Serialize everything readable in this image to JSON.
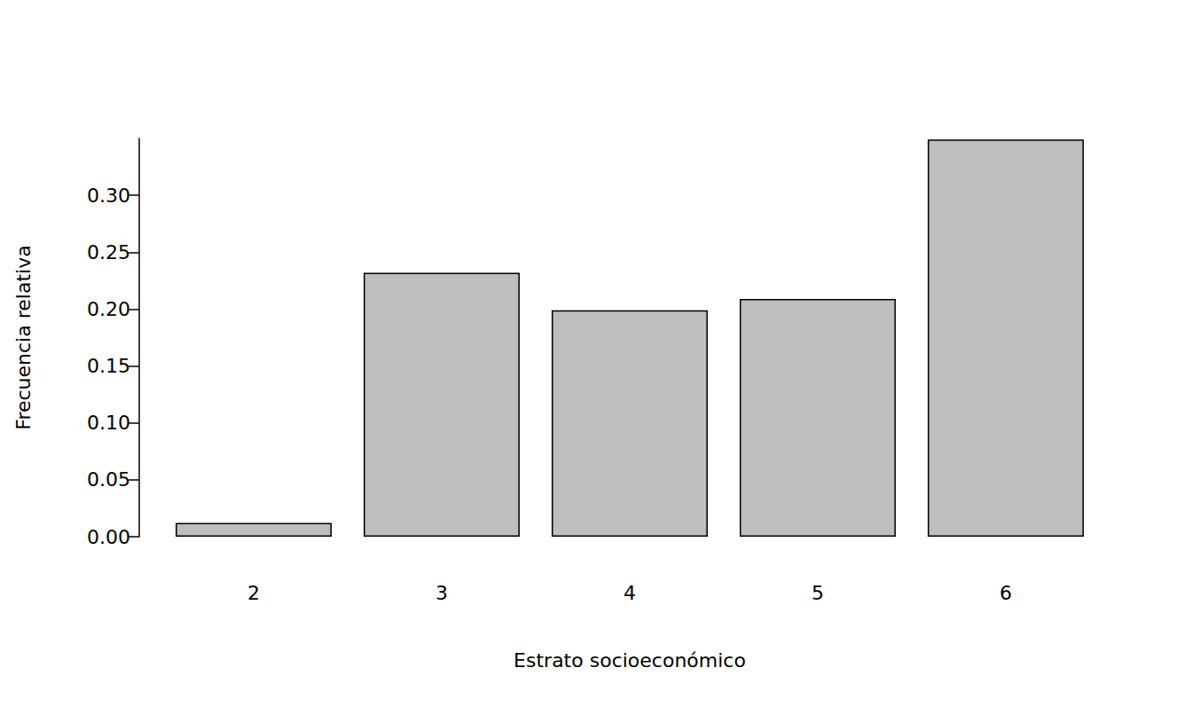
{
  "chart_data": {
    "type": "bar",
    "x_label": "Estrato socioeconómico",
    "y_label": "Frecuencia relativa",
    "categories": [
      "2",
      "3",
      "4",
      "5",
      "6"
    ],
    "values": [
      0.012,
      0.232,
      0.199,
      0.209,
      0.349
    ],
    "color": "#bebebe",
    "ylim": [
      0,
      0.35
    ],
    "yticks": [
      {
        "value": 0,
        "label": "0.00"
      },
      {
        "value": 0.05,
        "label": "0.05"
      },
      {
        "value": 0.1,
        "label": "0.10"
      },
      {
        "value": 0.15,
        "label": "0.15"
      },
      {
        "value": 0.2,
        "label": "0.20"
      },
      {
        "value": 0.25,
        "label": "0.25"
      },
      {
        "value": 0.3,
        "label": "0.30"
      }
    ],
    "grid": false
  }
}
